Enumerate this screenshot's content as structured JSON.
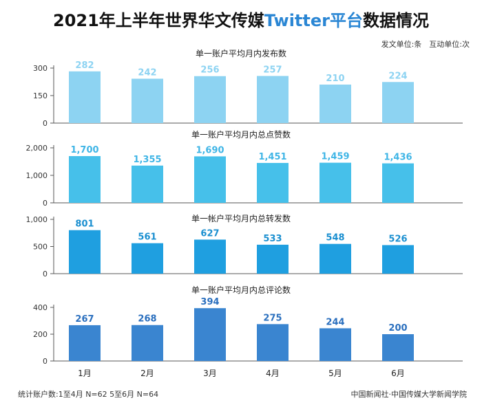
{
  "title": {
    "prefix": "2021年上半年世界华文传媒",
    "highlight": "Twitter平台",
    "suffix": "数据情况"
  },
  "units": "发文单位:条　互动单位:次",
  "footer": {
    "left": "统计账户数:1至4月 N=62  5至6月 N=64",
    "right": "中国新闻社·中国传媒大学新闻学院"
  },
  "chart_data": [
    {
      "type": "bar",
      "title": "单一账户平均月内发布数",
      "categories": [
        "1月",
        "2月",
        "3月",
        "4月",
        "5月",
        "6月"
      ],
      "values": [
        282,
        242,
        256,
        257,
        210,
        224
      ],
      "labels": [
        "282",
        "242",
        "256",
        "257",
        "210",
        "224"
      ],
      "yticks": [
        0,
        150,
        300
      ],
      "ytick_labels": [
        "0",
        "150",
        "300"
      ],
      "ylim": [
        0,
        300
      ],
      "color": "#8dd3f2",
      "label_color": "#8dd3f2"
    },
    {
      "type": "bar",
      "title": "单一账户平均月内总点赞数",
      "categories": [
        "1月",
        "2月",
        "3月",
        "4月",
        "5月",
        "6月"
      ],
      "values": [
        1700,
        1355,
        1690,
        1451,
        1459,
        1436
      ],
      "labels": [
        "1,700",
        "1,355",
        "1,690",
        "1,451",
        "1,459",
        "1,436"
      ],
      "yticks": [
        0,
        1000,
        2000
      ],
      "ytick_labels": [
        "0",
        "1,000",
        "2,000"
      ],
      "ylim": [
        0,
        2000
      ],
      "color": "#46c0ea",
      "label_color": "#3fb5e6"
    },
    {
      "type": "bar",
      "title": "单一帐户平均月内总转发数",
      "categories": [
        "1月",
        "2月",
        "3月",
        "4月",
        "5月",
        "6月"
      ],
      "values": [
        801,
        561,
        627,
        533,
        548,
        526
      ],
      "labels": [
        "801",
        "561",
        "627",
        "533",
        "548",
        "526"
      ],
      "yticks": [
        0,
        500,
        1000
      ],
      "ytick_labels": [
        "0",
        "500",
        "1,000"
      ],
      "ylim": [
        0,
        1000
      ],
      "color": "#1f9fe0",
      "label_color": "#1a8fd0"
    },
    {
      "type": "bar",
      "title": "单一账户平均月内总评论数",
      "categories": [
        "1月",
        "2月",
        "3月",
        "4月",
        "5月",
        "6月"
      ],
      "values": [
        267,
        268,
        394,
        275,
        244,
        200
      ],
      "labels": [
        "267",
        "268",
        "394",
        "275",
        "244",
        "200"
      ],
      "yticks": [
        0,
        200,
        400
      ],
      "ytick_labels": [
        "0",
        "200",
        "400"
      ],
      "ylim": [
        0,
        400
      ],
      "color": "#3a85d0",
      "label_color": "#2a6fbe"
    }
  ]
}
